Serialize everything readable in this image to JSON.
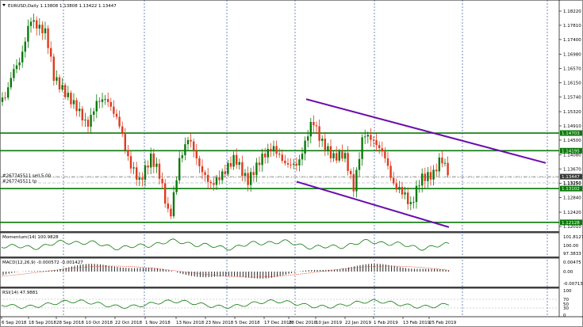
{
  "header": {
    "title": "EURUSD,Daily  1.13808 1.13808 1.13422 1.13447",
    "order_sell": "#267745511 sell 5.00",
    "order_tp": "#267745511 tp"
  },
  "price_axis": {
    "ticks": [
      "1.18220",
      "1.17810",
      "1.17400",
      "1.16980",
      "1.16570",
      "1.16150",
      "1.15740",
      "1.15320",
      "1.14910",
      "1.14500",
      "1.14080",
      "1.13670",
      "1.13250",
      "1.12840",
      "1.12420",
      "1.12010"
    ],
    "tick_values": [
      1.1822,
      1.1781,
      1.174,
      1.1698,
      1.1657,
      1.1615,
      1.1574,
      1.1532,
      1.1491,
      1.145,
      1.1408,
      1.1367,
      1.1325,
      1.1284,
      1.1242,
      1.1201
    ],
    "boxes": [
      {
        "label": "1.14703",
        "value": 1.14703,
        "color": "#0a7a0a"
      },
      {
        "label": "1.14195",
        "value": 1.14195,
        "color": "#0a7a0a"
      },
      {
        "label": "1.13447",
        "value": 1.13447,
        "color": "#3a3a3a"
      },
      {
        "label": "1.13102",
        "value": 1.13102,
        "color": "#0a7a0a"
      },
      {
        "label": "1.12128",
        "value": 1.12128,
        "color": "#0a7a0a"
      }
    ],
    "extra_label": "1.13250"
  },
  "time_axis": {
    "labels": [
      "6 Sep 2018",
      "18 Sep 2018",
      "28 Sep 2018",
      "10 Oct 2018",
      "22 Oct 2018",
      "1 Nov 2018",
      "13 Nov 2018",
      "23 Nov 2018",
      "5 Dec 2018",
      "17 Dec 2018",
      "28 Dec 2018",
      "10 Jan 2019",
      "22 Jan 2019",
      "1 Feb 2019",
      "13 Feb 2019",
      "25 Feb 2019"
    ]
  },
  "momentum": {
    "label": "Momentum(14) 100.9828",
    "ticks": [
      "101.8127",
      "100.00",
      "97.3833"
    ]
  },
  "macd": {
    "label": "MACD(12,26,9) -0.000572 -0.001427",
    "ticks": [
      "0.00475",
      "0.00",
      "-0.007135"
    ]
  },
  "rsi": {
    "label": "RSI(14) 47.9881",
    "ticks": [
      "100",
      "70",
      "50",
      "30",
      "0"
    ]
  },
  "colors": {
    "bull": "#0a7a0a",
    "bear": "#e03a1e",
    "level": "#0a7a0a",
    "channel": "#6a0dad",
    "indicator": "#0a7a0a",
    "signal": "#e03a1e",
    "grid": "#1e3c96"
  }
}
